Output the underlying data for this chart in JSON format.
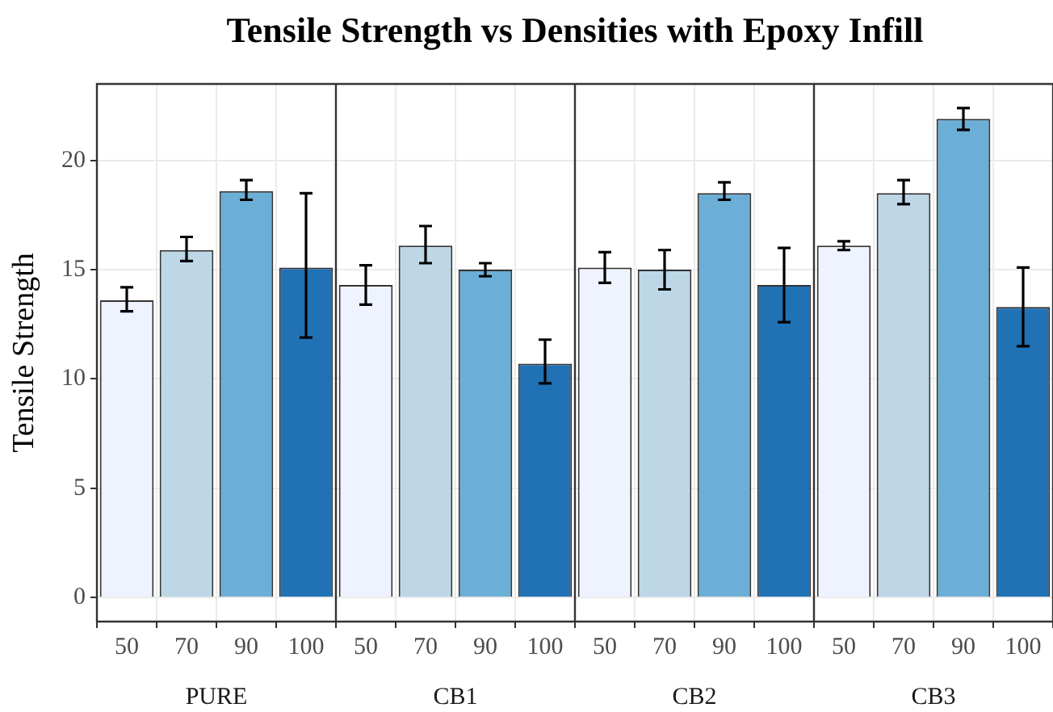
{
  "chart_data": [
    {
      "type": "bar",
      "title": "Tensile Strength vs Densities with Epoxy Infill",
      "ylabel": "Tensile Strength",
      "xlabel": "PURE",
      "categories": [
        "50",
        "70",
        "90",
        "100"
      ],
      "values": [
        13.6,
        15.9,
        18.6,
        15.1
      ],
      "errors": [
        [
          13.1,
          14.2
        ],
        [
          15.4,
          16.5
        ],
        [
          18.2,
          19.1
        ],
        [
          11.9,
          18.5
        ]
      ],
      "colors": [
        "#eff3ff",
        "#bdd7e7",
        "#6baed6",
        "#2171b5"
      ],
      "ylim": [
        -1.1,
        23.5
      ],
      "yticks": [
        0,
        5,
        10,
        15,
        20
      ],
      "grid": true
    },
    {
      "type": "bar",
      "xlabel": "CB1",
      "categories": [
        "50",
        "70",
        "90",
        "100"
      ],
      "values": [
        14.3,
        16.1,
        15.0,
        10.7
      ],
      "errors": [
        [
          13.4,
          15.2
        ],
        [
          15.3,
          17.0
        ],
        [
          14.7,
          15.3
        ],
        [
          9.8,
          11.8
        ]
      ],
      "colors": [
        "#eff3ff",
        "#bdd7e7",
        "#6baed6",
        "#2171b5"
      ],
      "ylim": [
        -1.1,
        23.5
      ],
      "yticks": [
        0,
        5,
        10,
        15,
        20
      ],
      "grid": true,
      "tick_labels": "x"
    },
    {
      "type": "bar",
      "xlabel": "CB2",
      "categories": [
        "50",
        "70",
        "90",
        "100"
      ],
      "values": [
        15.1,
        15.0,
        18.5,
        14.3
      ],
      "errors": [
        [
          14.4,
          15.8
        ],
        [
          14.1,
          15.9
        ],
        [
          18.2,
          19.0
        ],
        [
          12.6,
          16.0
        ]
      ],
      "colors": [
        "#eff3ff",
        "#bdd7e7",
        "#6baed6",
        "#2171b5"
      ],
      "ylim": [
        -1.1,
        23.5
      ],
      "yticks": [
        0,
        5,
        10,
        15,
        20
      ],
      "grid": true,
      "tick_labels": "x"
    },
    {
      "type": "bar",
      "xlabel": "CB3",
      "categories": [
        "50",
        "70",
        "90",
        "100"
      ],
      "values": [
        16.1,
        18.5,
        21.9,
        13.3
      ],
      "errors": [
        [
          15.9,
          16.3
        ],
        [
          18.0,
          19.1
        ],
        [
          21.4,
          22.4
        ],
        [
          11.5,
          15.1
        ]
      ],
      "colors": [
        "#eff3ff",
        "#bdd7e7",
        "#6baed6",
        "#2171b5"
      ],
      "ylim": [
        -1.1,
        23.5
      ],
      "yticks": [
        0,
        5,
        10,
        15,
        20
      ],
      "grid": true,
      "tick_labels": "x"
    }
  ]
}
